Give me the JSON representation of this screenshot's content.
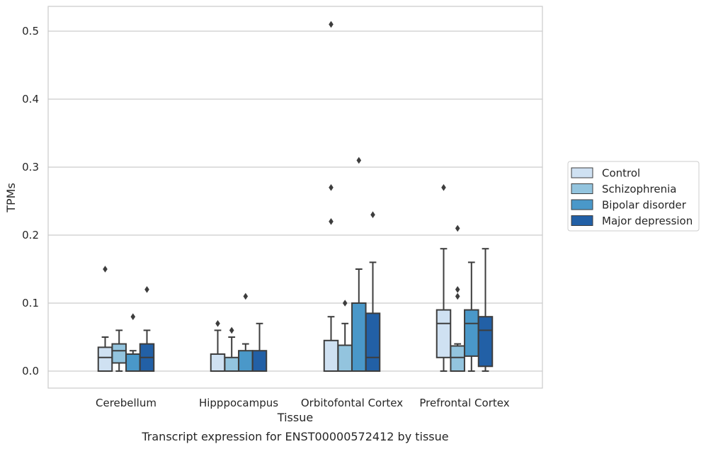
{
  "chart_data": {
    "type": "box",
    "caption": "Transcript expression for ENST00000572412 by tissue",
    "xlabel": "Tissue",
    "ylabel": "TPMs",
    "ylim": [
      -0.025,
      0.535
    ],
    "yticks": [
      0.0,
      0.1,
      0.2,
      0.3,
      0.4,
      0.5
    ],
    "ytick_labels": [
      "0.0",
      "0.1",
      "0.2",
      "0.3",
      "0.4",
      "0.5"
    ],
    "grid": "horizontal",
    "legend_position": "right, outside plot",
    "categories": [
      "Cerebellum",
      "Hipppocampus",
      "Orbitofontal Cortex",
      "Prefrontal Cortex"
    ],
    "series": [
      {
        "name": "Control",
        "color": "#cfe1f2",
        "boxes": [
          {
            "q1": 0.0,
            "median": 0.02,
            "q3": 0.035,
            "whisker_low": 0.0,
            "whisker_high": 0.05,
            "outliers": [
              0.15
            ]
          },
          {
            "q1": 0.0,
            "median": 0.0,
            "q3": 0.025,
            "whisker_low": 0.0,
            "whisker_high": 0.06,
            "outliers": [
              0.07
            ]
          },
          {
            "q1": 0.0,
            "median": 0.0,
            "q3": 0.045,
            "whisker_low": 0.0,
            "whisker_high": 0.08,
            "outliers": [
              0.22,
              0.27,
              0.51
            ]
          },
          {
            "q1": 0.02,
            "median": 0.07,
            "q3": 0.09,
            "whisker_low": 0.0,
            "whisker_high": 0.18,
            "outliers": [
              0.27
            ]
          }
        ]
      },
      {
        "name": "Schizophrenia",
        "color": "#93c4de",
        "boxes": [
          {
            "q1": 0.012,
            "median": 0.03,
            "q3": 0.04,
            "whisker_low": 0.0,
            "whisker_high": 0.06,
            "outliers": []
          },
          {
            "q1": 0.0,
            "median": 0.0,
            "q3": 0.02,
            "whisker_low": 0.0,
            "whisker_high": 0.05,
            "outliers": [
              0.06
            ]
          },
          {
            "q1": 0.0,
            "median": 0.0,
            "q3": 0.038,
            "whisker_low": 0.0,
            "whisker_high": 0.07,
            "outliers": [
              0.1
            ]
          },
          {
            "q1": 0.0,
            "median": 0.02,
            "q3": 0.037,
            "whisker_low": 0.0,
            "whisker_high": 0.04,
            "outliers": [
              0.11,
              0.12,
              0.21
            ]
          }
        ]
      },
      {
        "name": "Bipolar disorder",
        "color": "#4a98c9",
        "boxes": [
          {
            "q1": 0.0,
            "median": 0.0,
            "q3": 0.025,
            "whisker_low": 0.0,
            "whisker_high": 0.03,
            "outliers": [
              0.08
            ]
          },
          {
            "q1": 0.0,
            "median": 0.0,
            "q3": 0.03,
            "whisker_low": 0.0,
            "whisker_high": 0.04,
            "outliers": [
              0.11
            ]
          },
          {
            "q1": 0.0,
            "median": 0.0,
            "q3": 0.1,
            "whisker_low": 0.0,
            "whisker_high": 0.15,
            "outliers": [
              0.31
            ]
          },
          {
            "q1": 0.022,
            "median": 0.07,
            "q3": 0.09,
            "whisker_low": 0.0,
            "whisker_high": 0.16,
            "outliers": []
          }
        ]
      },
      {
        "name": "Major depression",
        "color": "#2260a6",
        "boxes": [
          {
            "q1": 0.0,
            "median": 0.02,
            "q3": 0.04,
            "whisker_low": 0.0,
            "whisker_high": 0.06,
            "outliers": [
              0.12
            ]
          },
          {
            "q1": 0.0,
            "median": 0.0,
            "q3": 0.03,
            "whisker_low": 0.0,
            "whisker_high": 0.07,
            "outliers": []
          },
          {
            "q1": 0.0,
            "median": 0.02,
            "q3": 0.085,
            "whisker_low": 0.0,
            "whisker_high": 0.16,
            "outliers": [
              0.23
            ]
          },
          {
            "q1": 0.007,
            "median": 0.06,
            "q3": 0.08,
            "whisker_low": 0.0,
            "whisker_high": 0.18,
            "outliers": []
          }
        ]
      }
    ]
  }
}
